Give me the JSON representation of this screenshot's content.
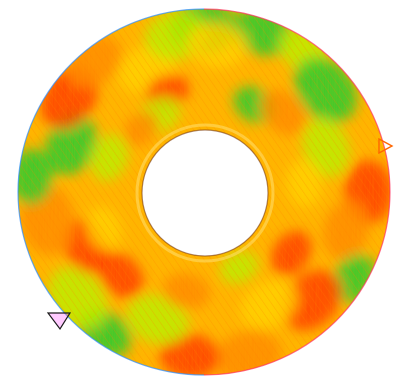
{
  "figure": {
    "kind": "annular surface color map",
    "background": "#ffffff",
    "colors": {
      "high": "#ff3b00",
      "upper": "#ff8a00",
      "mid": "#ffd200",
      "lower": "#b8f000",
      "low": "#22cc33",
      "rim_left": "#2a8cff",
      "rim_right": "#ff3060",
      "marker_stroke": "#1a1a1a",
      "marker_pink": "#ff66ff",
      "marker_orange": "#ff6600"
    },
    "markers": [
      {
        "name": "left-triangle-marker",
        "shape": "downward-triangle",
        "color": "#ff66ff"
      },
      {
        "name": "right-triangle-marker",
        "shape": "sideways-triangle",
        "color": "#ff6600"
      }
    ]
  }
}
